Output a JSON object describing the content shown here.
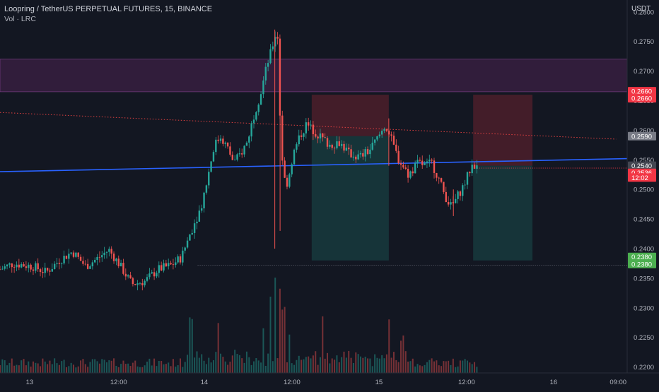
{
  "header": {
    "title": "Loopring / TetherUS PERPETUAL FUTURES, 15, BINANCE",
    "indicator": "Vol · LRC",
    "currency": "USDT"
  },
  "colors": {
    "background": "#131722",
    "up": "#26a69a",
    "down": "#ef5350",
    "resistance_zone": "#4a2350",
    "trendline": "#2962ff",
    "axis_text": "#b2b5be"
  },
  "chart_data": {
    "type": "candlestick",
    "title": "",
    "xlabel": "",
    "ylabel": "",
    "ylim": [
      0.219,
      0.282
    ],
    "grid": false,
    "price_ticks": [
      "0.2800",
      "0.2750",
      "0.2700",
      "0.2650",
      "0.2600",
      "0.2550",
      "0.2500",
      "0.2450",
      "0.2400",
      "0.2350",
      "0.2300",
      "0.2250",
      "0.2200"
    ],
    "time_ticks": [
      {
        "label": "13",
        "t": 0.045
      },
      {
        "label": "12:00",
        "t": 0.18
      },
      {
        "label": "14",
        "t": 0.31
      },
      {
        "label": "12:00",
        "t": 0.443
      },
      {
        "label": "15",
        "t": 0.575
      },
      {
        "label": "12:00",
        "t": 0.708
      },
      {
        "label": "16",
        "t": 0.84
      },
      {
        "label": "09:00",
        "t": 0.938
      }
    ],
    "price_path": [
      [
        0.0,
        0.2365
      ],
      [
        0.02,
        0.2375
      ],
      [
        0.05,
        0.237
      ],
      [
        0.07,
        0.236
      ],
      [
        0.09,
        0.238
      ],
      [
        0.11,
        0.2395
      ],
      [
        0.13,
        0.237
      ],
      [
        0.15,
        0.2385
      ],
      [
        0.165,
        0.2398
      ],
      [
        0.18,
        0.2375
      ],
      [
        0.2,
        0.234
      ],
      [
        0.22,
        0.2345
      ],
      [
        0.24,
        0.2365
      ],
      [
        0.26,
        0.2372
      ],
      [
        0.275,
        0.2385
      ],
      [
        0.29,
        0.243
      ],
      [
        0.305,
        0.247
      ],
      [
        0.315,
        0.252
      ],
      [
        0.325,
        0.2575
      ],
      [
        0.335,
        0.259
      ],
      [
        0.345,
        0.257
      ],
      [
        0.355,
        0.2545
      ],
      [
        0.365,
        0.256
      ],
      [
        0.375,
        0.258
      ],
      [
        0.385,
        0.2625
      ],
      [
        0.395,
        0.266
      ],
      [
        0.405,
        0.271
      ],
      [
        0.412,
        0.2735
      ],
      [
        0.417,
        0.276
      ],
      [
        0.421,
        0.2765
      ],
      [
        0.425,
        0.262
      ],
      [
        0.43,
        0.252
      ],
      [
        0.436,
        0.251
      ],
      [
        0.445,
        0.256
      ],
      [
        0.455,
        0.259
      ],
      [
        0.465,
        0.261
      ],
      [
        0.48,
        0.2595
      ],
      [
        0.5,
        0.2575
      ],
      [
        0.515,
        0.258
      ],
      [
        0.53,
        0.256
      ],
      [
        0.545,
        0.2555
      ],
      [
        0.56,
        0.2565
      ],
      [
        0.575,
        0.259
      ],
      [
        0.585,
        0.261
      ],
      [
        0.595,
        0.258
      ],
      [
        0.605,
        0.255
      ],
      [
        0.62,
        0.2525
      ],
      [
        0.635,
        0.2545
      ],
      [
        0.645,
        0.254
      ],
      [
        0.655,
        0.2545
      ],
      [
        0.665,
        0.252
      ],
      [
        0.675,
        0.249
      ],
      [
        0.685,
        0.247
      ],
      [
        0.695,
        0.249
      ],
      [
        0.705,
        0.251
      ],
      [
        0.712,
        0.253
      ],
      [
        0.718,
        0.2545
      ],
      [
        0.724,
        0.2535
      ]
    ],
    "spikes": [
      {
        "t": 0.417,
        "low": 0.24,
        "high": 0.277
      },
      {
        "t": 0.425,
        "low": 0.243,
        "high": 0.27
      },
      {
        "t": 0.59,
        "low": 0.254,
        "high": 0.262
      },
      {
        "t": 0.688,
        "low": 0.2455,
        "high": 0.25
      }
    ],
    "volume_spikes": [
      {
        "t": 0.29,
        "v": 0.55
      },
      {
        "t": 0.33,
        "v": 0.45
      },
      {
        "t": 0.41,
        "v": 0.75
      },
      {
        "t": 0.417,
        "v": 1.0
      },
      {
        "t": 0.425,
        "v": 0.85
      },
      {
        "t": 0.43,
        "v": 0.6
      },
      {
        "t": 0.49,
        "v": 0.6
      },
      {
        "t": 0.59,
        "v": 0.55
      },
      {
        "t": 0.61,
        "v": 0.35
      },
      {
        "t": 0.4,
        "v": 0.45
      },
      {
        "t": 0.44,
        "v": 0.4
      }
    ],
    "zones": [
      {
        "kind": "resistance",
        "top": 0.272,
        "bottom": 0.2665
      },
      {
        "kind": "short-stop",
        "t0": 0.473,
        "t1": 0.59,
        "top": 0.266,
        "bottom": 0.259
      },
      {
        "kind": "short-target",
        "t0": 0.473,
        "t1": 0.59,
        "top": 0.259,
        "bottom": 0.238
      },
      {
        "kind": "short-stop",
        "t0": 0.718,
        "t1": 0.808,
        "top": 0.266,
        "bottom": 0.254
      },
      {
        "kind": "short-target",
        "t0": 0.718,
        "t1": 0.808,
        "top": 0.254,
        "bottom": 0.238
      }
    ],
    "lines": [
      {
        "kind": "red-dotted-trend",
        "p0": [
          0.0,
          0.263
        ],
        "p1": [
          0.935,
          0.2585
        ]
      },
      {
        "kind": "blue-trend",
        "p0": [
          0.0,
          0.253
        ],
        "p1": [
          0.952,
          0.2552
        ]
      },
      {
        "kind": "last-price-dotted",
        "p0": [
          0.724,
          0.2536
        ],
        "p1": [
          0.952,
          0.2536
        ]
      },
      {
        "kind": "target-dotted",
        "p0": [
          0.3,
          0.2372
        ],
        "p1": [
          0.952,
          0.2372
        ]
      }
    ],
    "price_labels": [
      {
        "text": "0.2660",
        "price": 0.2666,
        "color": "#f23645"
      },
      {
        "text": "0.2660",
        "price": 0.2654,
        "color": "#f23645"
      },
      {
        "text": "0.2590",
        "price": 0.259,
        "color": "#787b86"
      },
      {
        "text": "0.2540",
        "price": 0.254,
        "color": "#434651"
      },
      {
        "text": "0.2536",
        "price": 0.2528,
        "color": "#f23645"
      },
      {
        "text": "12:02",
        "price": 0.252,
        "color": "#f23645"
      },
      {
        "text": "0.2380",
        "price": 0.2386,
        "color": "#4caf50"
      },
      {
        "text": "0.2380",
        "price": 0.2374,
        "color": "#4caf50"
      }
    ]
  }
}
